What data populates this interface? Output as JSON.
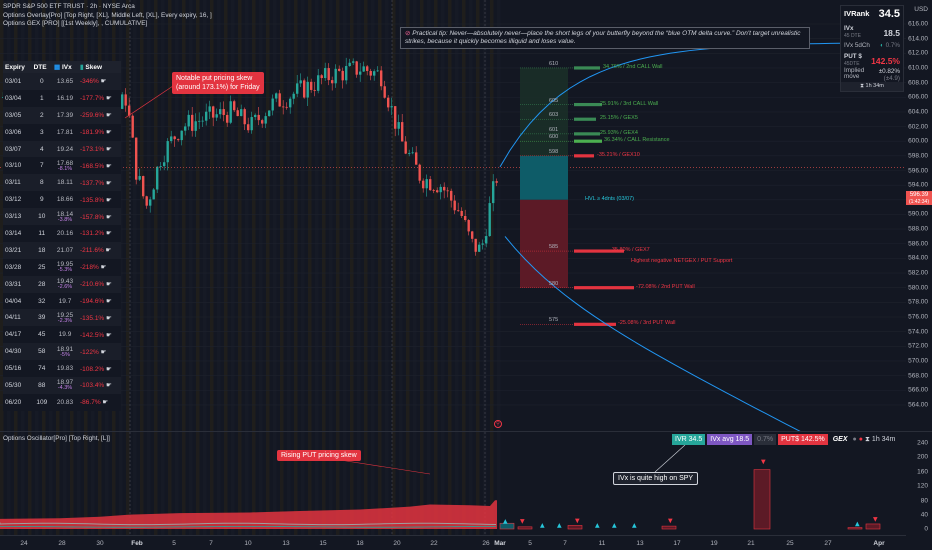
{
  "legend": {
    "line1": "SPDR S&P 500 ETF TRUST · 2h · NYSE Arca",
    "line2": "Options Overlay[Pro] [Top Right, [XL], Middle Left, [XL], Every expiry, 16, ]",
    "line3": "Options GEX [PRO] [[1st Weekly], , CUMULATIVE]"
  },
  "osc_legend": "Options Oscillator[Pro] [Top Right, [L]]",
  "table": {
    "headers": [
      "Expiry",
      "DTE",
      "IVx",
      "Skew"
    ],
    "rows": [
      {
        "expiry": "03/01",
        "dte": "0",
        "ivx": "13.65",
        "chg": "",
        "skew": "-346%"
      },
      {
        "expiry": "03/04",
        "dte": "1",
        "ivx": "16.19",
        "chg": "",
        "skew": "-177.7%"
      },
      {
        "expiry": "03/05",
        "dte": "2",
        "ivx": "17.39",
        "chg": "",
        "skew": "-259.6%"
      },
      {
        "expiry": "03/06",
        "dte": "3",
        "ivx": "17.81",
        "chg": "",
        "skew": "-181.9%"
      },
      {
        "expiry": "03/07",
        "dte": "4",
        "ivx": "19.24",
        "chg": "",
        "skew": "-173.1%"
      },
      {
        "expiry": "03/10",
        "dte": "7",
        "ivx": "17.68",
        "chg": "-8.1%",
        "skew": "-168.5%"
      },
      {
        "expiry": "03/11",
        "dte": "8",
        "ivx": "18.11",
        "chg": "",
        "skew": "-137.7%"
      },
      {
        "expiry": "03/12",
        "dte": "9",
        "ivx": "18.66",
        "chg": "",
        "skew": "-135.8%"
      },
      {
        "expiry": "03/13",
        "dte": "10",
        "ivx": "18.14",
        "chg": "-3.8%",
        "skew": "-157.8%"
      },
      {
        "expiry": "03/14",
        "dte": "11",
        "ivx": "20.16",
        "chg": "",
        "skew": "-131.2%"
      },
      {
        "expiry": "03/21",
        "dte": "18",
        "ivx": "21.07",
        "chg": "",
        "skew": "-211.6%"
      },
      {
        "expiry": "03/28",
        "dte": "25",
        "ivx": "19.95",
        "chg": "-5.3%",
        "skew": "-218%"
      },
      {
        "expiry": "03/31",
        "dte": "28",
        "ivx": "19.43",
        "chg": "-2.6%",
        "skew": "-210.6%"
      },
      {
        "expiry": "04/04",
        "dte": "32",
        "ivx": "19.7",
        "chg": "",
        "skew": "-194.6%"
      },
      {
        "expiry": "04/11",
        "dte": "39",
        "ivx": "19.25",
        "chg": "-2.3%",
        "skew": "-135.1%"
      },
      {
        "expiry": "04/17",
        "dte": "45",
        "ivx": "19.9",
        "chg": "",
        "skew": "-142.5%"
      },
      {
        "expiry": "04/30",
        "dte": "58",
        "ivx": "18.91",
        "chg": "-5%",
        "skew": "-122%"
      },
      {
        "expiry": "05/16",
        "dte": "74",
        "ivx": "19.83",
        "chg": "",
        "skew": "-108.2%"
      },
      {
        "expiry": "05/30",
        "dte": "88",
        "ivx": "18.97",
        "chg": "-4.3%",
        "skew": "-103.4%"
      },
      {
        "expiry": "06/20",
        "dte": "109",
        "ivx": "20.83",
        "chg": "",
        "skew": "-86.7%"
      }
    ]
  },
  "callouts": {
    "put_skew": "Notable put pricing skew\n(around 173.1%) for Friday",
    "rising_put": "Rising PUT pricing skew",
    "ivx_high": "IVx is quite high on SPY"
  },
  "tip": "Practical tip: Never—absolutely never—place the short legs of your butterfly beyond the “blue OTM delta curve.” Don't target unrealistic strikes, because it quickly becomes illiquid and loses value.",
  "ivr_panel": {
    "ivrank_label": "IVRank",
    "ivrank": "34.5",
    "ivx_label": "IVx",
    "ivx_sub": "45 DTE",
    "ivx": "18.5",
    "ivx5d_label": "IVx 5dCh",
    "ivx5d": "0.7%",
    "put_label": "PUT $",
    "put_sub": "45DTE",
    "put": "142.5%",
    "implied_label": "Implied move",
    "implied": "±0.82%",
    "implied_sub": "(±4.9)",
    "time": "1h 34m"
  },
  "osc_pills": {
    "ivr": "IVR 34.5",
    "ivx_avg": "IVx avg 18.5",
    "ivx_chg": "0.7%",
    "put": "PUT$ 142.5%",
    "gex": "GEX",
    "time": "1h 34m"
  },
  "y_axis": [
    "616.00",
    "614.00",
    "612.00",
    "610.00",
    "608.00",
    "606.00",
    "604.00",
    "602.00",
    "600.00",
    "598.00",
    "596.00",
    "594.00",
    "592.00",
    "590.00",
    "588.00",
    "586.00",
    "584.00",
    "582.00",
    "580.00",
    "578.00",
    "576.00",
    "574.00",
    "572.00",
    "570.00",
    "568.00",
    "566.00",
    "564.00"
  ],
  "y_axis_currency": "USD",
  "price_tag": {
    "price": "596.39",
    "sub": "(1:42:34)"
  },
  "osc_y_axis": [
    "240",
    "200",
    "160",
    "120",
    "80",
    "40",
    "0"
  ],
  "x_axis": [
    {
      "label": "24",
      "bold": false
    },
    {
      "label": "28",
      "bold": false
    },
    {
      "label": "30",
      "bold": false
    },
    {
      "label": "Feb",
      "bold": true
    },
    {
      "label": "5",
      "bold": false
    },
    {
      "label": "7",
      "bold": false
    },
    {
      "label": "10",
      "bold": false
    },
    {
      "label": "13",
      "bold": false
    },
    {
      "label": "15",
      "bold": false
    },
    {
      "label": "18",
      "bold": false
    },
    {
      "label": "20",
      "bold": false
    },
    {
      "label": "22",
      "bold": false
    },
    {
      "label": "26",
      "bold": false
    },
    {
      "label": "Mar",
      "bold": true
    },
    {
      "label": "5",
      "bold": false
    },
    {
      "label": "7",
      "bold": false
    },
    {
      "label": "11",
      "bold": false
    },
    {
      "label": "13",
      "bold": false
    },
    {
      "label": "17",
      "bold": false
    },
    {
      "label": "19",
      "bold": false
    },
    {
      "label": "21",
      "bold": false
    },
    {
      "label": "25",
      "bold": false
    },
    {
      "label": "27",
      "bold": false
    },
    {
      "label": "Apr",
      "bold": true
    }
  ],
  "levels": [
    {
      "strike": "610",
      "text": "34.76% / 2nd CALL Wall",
      "color": "#4caf50"
    },
    {
      "strike": "605",
      "text": "25.91% / 3rd CALL Wall",
      "color": "#4caf50"
    },
    {
      "strike": "603",
      "text": "25.15% / GEX5",
      "color": "#4caf50"
    },
    {
      "strike": "601",
      "text": "25.93% / GEX4",
      "color": "#4caf50"
    },
    {
      "strike": "600",
      "text": "36.34% / CALL Resistance",
      "color": "#4caf50"
    },
    {
      "strike": "598",
      "text": "-35.21% / GEX10",
      "color": "#f23645"
    },
    {
      "strike": "",
      "text": "HVL ≥ 4dnts (03/07)",
      "color": "#26c6da"
    },
    {
      "strike": "585",
      "text": "-35.80% / GEX7",
      "color": "#f23645"
    },
    {
      "strike": "",
      "text": "Highest negative NETGEX / PUT Support",
      "color": "#f23645"
    },
    {
      "strike": "580",
      "text": "-72.08% / 2nd PUT Wall",
      "color": "#f23645"
    },
    {
      "strike": "575",
      "text": "-25.08% / 3rd PUT Wall",
      "color": "#f23645"
    }
  ],
  "colors": {
    "bg": "#131722",
    "up": "#26a69a",
    "down": "#ef5350",
    "delta_curve": "#2196f3",
    "skew_fill": "#e33440"
  }
}
